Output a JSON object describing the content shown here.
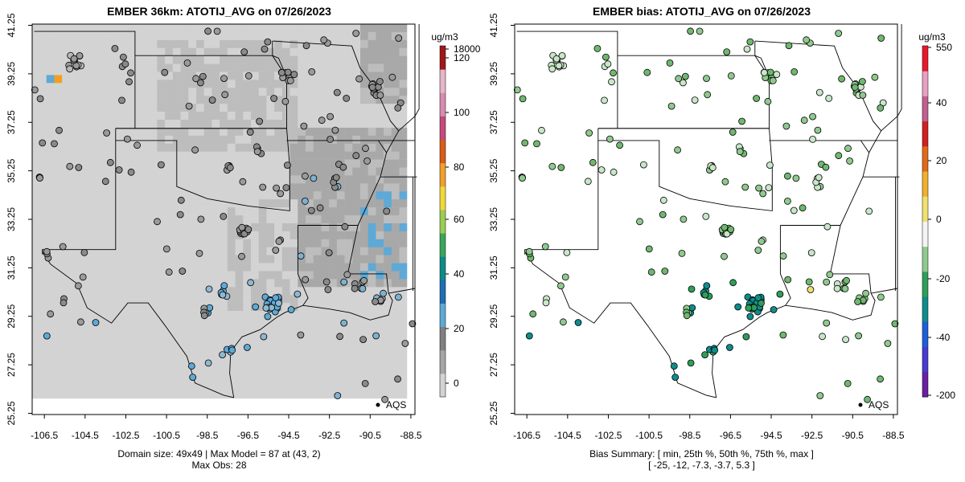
{
  "chart_data": [
    {
      "type": "heatmap",
      "title": "EMBER 36km: ATOTIJ_AVG on 07/26/2023",
      "xlabel": "",
      "ylabel": "",
      "x_ticks": [
        "-106.5",
        "-104.5",
        "-102.5",
        "-100.5",
        "-98.5",
        "-96.5",
        "-94.5",
        "-92.5",
        "-90.5",
        "-88.5"
      ],
      "y_ticks": [
        "25.25",
        "27.25",
        "29.25",
        "31.25",
        "33.25",
        "35.25",
        "37.25",
        "39.25",
        "41.25"
      ],
      "xlim": [
        -107.1,
        -88.3
      ],
      "ylim": [
        25.2,
        41.3
      ],
      "legend": {
        "label": "AQS",
        "placement": "bottom-right"
      },
      "colorbar": {
        "unit": "ug/m3",
        "ticks": [
          "0",
          "20",
          "40",
          "60",
          "80",
          "100",
          "120",
          "18000"
        ],
        "colors": [
          "#d3d3d3",
          "#a6a6a6",
          "#808080",
          "#5ea9d6",
          "#1d6fb5",
          "#0e8a8a",
          "#3aa55a",
          "#9bcd52",
          "#f0d83a",
          "#f0a02a",
          "#d85c1c",
          "#c44a7a",
          "#d88cb0",
          "#e8b4c8",
          "#a01818"
        ],
        "placement": "right"
      },
      "notes_lines": [
        "Domain size: 49x49 | Max Model = 87 at (43, 2)",
        "Max Obs: 28"
      ],
      "grid_colors": {
        "low": "#d3d3d3",
        "mid": "#bdbdbd",
        "high": "#a8a8a8",
        "max": "#5ea9d6",
        "peak": "#f0a020"
      },
      "obs_points_sample": [
        {
          "lon": -106.3,
          "lat": 40.2,
          "value": 12
        },
        {
          "lon": -95.3,
          "lat": 29.7,
          "value": 24
        },
        {
          "lon": -97.7,
          "lat": 27.7,
          "value": 23
        },
        {
          "lon": -97.4,
          "lat": 25.9,
          "value": 19
        },
        {
          "lon": -93.7,
          "lat": 32.5,
          "value": 18
        },
        {
          "lon": -90.1,
          "lat": 30.0,
          "value": 14
        }
      ]
    },
    {
      "type": "scatter",
      "title": "EMBER bias: ATOTIJ_AVG on 07/26/2023",
      "xlabel": "",
      "ylabel": "",
      "x_ticks": [
        "-106.5",
        "-104.5",
        "-102.5",
        "-100.5",
        "-98.5",
        "-96.5",
        "-94.5",
        "-92.5",
        "-90.5",
        "-88.5"
      ],
      "y_ticks": [
        "25.25",
        "27.25",
        "29.25",
        "31.25",
        "33.25",
        "35.25",
        "37.25",
        "39.25",
        "41.25"
      ],
      "xlim": [
        -107.1,
        -88.3
      ],
      "ylim": [
        25.2,
        41.3
      ],
      "legend": {
        "label": "AQS",
        "placement": "bottom-right"
      },
      "colorbar": {
        "unit": "ug/m3",
        "ticks": [
          "-200",
          "-40",
          "-20",
          "0",
          "20",
          "40",
          "550"
        ],
        "colors": [
          "#6a1fa0",
          "#4a3ad0",
          "#1f5fd8",
          "#0f8c8c",
          "#2f9e5a",
          "#8fc98e",
          "#f4f4f4",
          "#f0e070",
          "#f0b030",
          "#e06a1a",
          "#d02020",
          "#c06090",
          "#e8a0c0",
          "#e8182a"
        ],
        "placement": "right"
      },
      "summary_lines": [
        "Bias Summary: [ min, 25th %, 50th %, 75th %, max ]",
        "[ -25,   -12,   -7.3,   -3.7,   5.3 ]"
      ],
      "bias_summary": {
        "min": -25,
        "p25": -12,
        "p50": -7.3,
        "p75": -3.7,
        "max": 5.3
      }
    }
  ],
  "unit_label": "ug/m3",
  "legend_label": "AQS"
}
